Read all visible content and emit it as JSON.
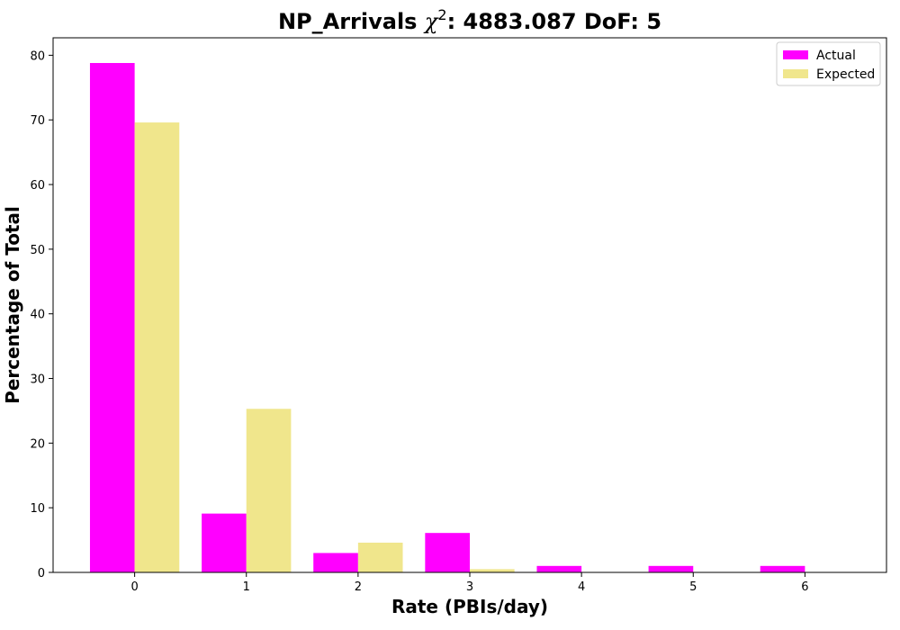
{
  "chart_data": {
    "type": "bar",
    "title_prefix": "NP_Arrivals",
    "title_chi": "χ",
    "title_sup": "2",
    "title_suffix": ": 4883.087 DoF: 5",
    "xlabel": "Rate (PBIs/day)",
    "ylabel": "Percentage of Total",
    "categories": [
      "0",
      "1",
      "2",
      "3",
      "4",
      "5",
      "6"
    ],
    "series": [
      {
        "name": "Actual",
        "color": "#ff00ff",
        "values": [
          78.8,
          9.1,
          3.0,
          6.1,
          1.0,
          1.0,
          1.0
        ]
      },
      {
        "name": "Expected",
        "color": "#f0e68c",
        "values": [
          69.6,
          25.3,
          4.6,
          0.5,
          0.05,
          0.0,
          0.0
        ]
      }
    ],
    "yticks": [
      "0",
      "10",
      "20",
      "30",
      "40",
      "50",
      "60",
      "70",
      "80"
    ],
    "ylim": [
      0,
      82.7
    ],
    "xlim": [
      -0.73,
      6.73
    ],
    "grid": false,
    "legend_position": "top-right"
  }
}
